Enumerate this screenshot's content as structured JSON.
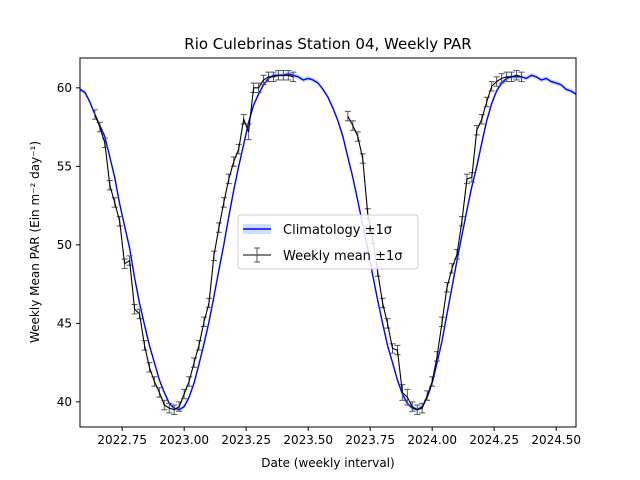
{
  "chart_data": {
    "type": "line",
    "title": "Rio Culebrinas Station 04, Weekly PAR",
    "xlabel": "Date (weekly interval)",
    "ylabel": "Weekly Mean PAR (Ein m⁻² day⁻¹)",
    "xlim": [
      2022.58,
      2024.58
    ],
    "ylim": [
      38.4,
      61.9
    ],
    "x_ticks": [
      2022.75,
      2023.0,
      2023.25,
      2023.5,
      2023.75,
      2024.0,
      2024.25,
      2024.5
    ],
    "x_tick_labels": [
      "2022.75",
      "2023.00",
      "2023.25",
      "2023.50",
      "2023.75",
      "2024.00",
      "2024.25",
      "2024.50"
    ],
    "y_ticks": [
      40,
      45,
      50,
      55,
      60
    ],
    "y_tick_labels": [
      "40",
      "45",
      "50",
      "55",
      "60"
    ],
    "grid": false,
    "legend_position": "center",
    "legend": [
      {
        "label": "Climatology ±1σ",
        "color": "#0000ff",
        "kind": "line-band"
      },
      {
        "label": "Weekly mean ±1σ",
        "color": "#000000",
        "kind": "errorbar"
      }
    ],
    "series": [
      {
        "name": "Climatology ±1σ",
        "color": "#0000ff",
        "x": [
          2022.58,
          2022.6,
          2022.62,
          2022.64,
          2022.66,
          2022.68,
          2022.7,
          2022.72,
          2022.74,
          2022.76,
          2022.78,
          2022.8,
          2022.82,
          2022.84,
          2022.86,
          2022.88,
          2022.9,
          2022.92,
          2022.94,
          2022.96,
          2022.98,
          2023.0,
          2023.02,
          2023.04,
          2023.06,
          2023.08,
          2023.1,
          2023.12,
          2023.14,
          2023.16,
          2023.18,
          2023.2,
          2023.22,
          2023.24,
          2023.26,
          2023.28,
          2023.3,
          2023.32,
          2023.34,
          2023.36,
          2023.38,
          2023.4,
          2023.42,
          2023.44,
          2023.46,
          2023.48,
          2023.5,
          2023.52,
          2023.54,
          2023.56,
          2023.58,
          2023.6,
          2023.62,
          2023.64,
          2023.66,
          2023.68,
          2023.7,
          2023.72,
          2023.74,
          2023.76,
          2023.78,
          2023.8,
          2023.82,
          2023.84,
          2023.86,
          2023.88,
          2023.9,
          2023.92,
          2023.94,
          2023.96,
          2023.98,
          2024.0,
          2024.02,
          2024.04,
          2024.06,
          2024.08,
          2024.1,
          2024.12,
          2024.14,
          2024.16,
          2024.18,
          2024.2,
          2024.22,
          2024.24,
          2024.26,
          2024.28,
          2024.3,
          2024.32,
          2024.34,
          2024.36,
          2024.38,
          2024.4,
          2024.42,
          2024.44,
          2024.46,
          2024.48,
          2024.5,
          2024.52,
          2024.54,
          2024.56,
          2024.58
        ],
        "y": [
          59.9,
          59.7,
          59.1,
          58.3,
          57.6,
          56.9,
          55.6,
          54.3,
          52.6,
          51.2,
          49.8,
          47.9,
          46.3,
          44.9,
          43.6,
          42.5,
          41.4,
          40.6,
          39.9,
          39.6,
          39.5,
          39.7,
          40.3,
          41.2,
          42.4,
          43.7,
          45.1,
          46.7,
          48.4,
          50.0,
          51.8,
          53.5,
          55.0,
          56.4,
          57.8,
          58.9,
          59.6,
          60.2,
          60.6,
          60.8,
          60.8,
          60.8,
          60.9,
          60.8,
          60.7,
          60.5,
          60.6,
          60.5,
          60.3,
          59.9,
          59.4,
          58.7,
          57.9,
          56.9,
          55.6,
          54.3,
          52.8,
          51.3,
          49.8,
          48.1,
          46.5,
          45.0,
          43.6,
          42.5,
          41.4,
          40.5,
          39.9,
          39.6,
          39.5,
          39.7,
          40.3,
          41.2,
          42.5,
          43.9,
          45.6,
          47.3,
          49.0,
          50.6,
          52.2,
          53.7,
          55.0,
          56.5,
          57.9,
          59.0,
          59.8,
          60.3,
          60.6,
          60.7,
          60.7,
          60.7,
          60.6,
          60.8,
          60.7,
          60.5,
          60.6,
          60.4,
          60.3,
          60.2,
          59.9,
          59.8,
          59.6
        ]
      },
      {
        "name": "Weekly mean ±1σ",
        "color": "#000000",
        "x": [
          2022.64,
          2022.66,
          2022.68,
          2022.7,
          2022.72,
          2022.74,
          2022.76,
          2022.78,
          2022.8,
          2022.82,
          2022.84,
          2022.86,
          2022.88,
          2022.9,
          2022.92,
          2022.94,
          2022.96,
          2022.98,
          2023.0,
          2023.02,
          2023.04,
          2023.06,
          2023.08,
          2023.1,
          2023.12,
          2023.14,
          2023.16,
          2023.18,
          2023.2,
          2023.22,
          2023.24,
          2023.26,
          2023.28,
          2023.3,
          2023.32,
          2023.34,
          2023.36,
          2023.38,
          2023.4,
          2023.42,
          2023.44,
          2023.66,
          2023.68,
          2023.7,
          2023.72,
          2023.74,
          2023.76,
          2023.78,
          2023.8,
          2023.82,
          2023.84,
          2023.86,
          2023.88,
          2023.9,
          2023.92,
          2023.94,
          2023.96,
          2023.98,
          2024.0,
          2024.02,
          2024.04,
          2024.06,
          2024.08,
          2024.1,
          2024.12,
          2024.14,
          2024.16,
          2024.18,
          2024.2,
          2024.22,
          2024.24,
          2024.26,
          2024.28,
          2024.3,
          2024.32,
          2024.34,
          2024.36
        ],
        "y": [
          58.3,
          57.5,
          56.5,
          53.8,
          52.7,
          51.5,
          48.8,
          49.0,
          45.9,
          45.6,
          43.6,
          42.2,
          41.3,
          40.6,
          39.8,
          39.6,
          39.5,
          39.7,
          40.5,
          41.3,
          42.5,
          43.6,
          45.1,
          46.3,
          49.3,
          51.1,
          52.7,
          54.2,
          55.3,
          56.1,
          58.0,
          57.2,
          60.0,
          60.0,
          60.5,
          60.7,
          60.7,
          60.8,
          60.8,
          60.8,
          60.7,
          58.2,
          57.6,
          56.9,
          55.5,
          52.0,
          50.4,
          48.3,
          46.3,
          45.0,
          43.4,
          43.3,
          40.6,
          40.3,
          39.7,
          39.5,
          39.6,
          40.4,
          41.3,
          42.9,
          45.1,
          47.3,
          48.5,
          49.4,
          51.5,
          54.2,
          54.3,
          57.3,
          58.0,
          59.1,
          60.1,
          60.4,
          60.6,
          60.7,
          60.7,
          60.8,
          60.7
        ],
        "err": [
          0.3,
          0.3,
          0.3,
          0.3,
          0.3,
          0.3,
          0.3,
          0.3,
          0.3,
          0.3,
          0.3,
          0.3,
          0.3,
          0.3,
          0.3,
          0.3,
          0.3,
          0.3,
          0.3,
          0.3,
          0.3,
          0.3,
          0.3,
          0.3,
          0.3,
          0.3,
          0.3,
          0.3,
          0.3,
          0.3,
          0.3,
          0.5,
          0.3,
          0.3,
          0.3,
          0.3,
          0.3,
          0.3,
          0.3,
          0.3,
          0.3,
          0.3,
          0.3,
          0.3,
          0.3,
          0.3,
          0.3,
          0.3,
          0.3,
          0.3,
          0.3,
          0.3,
          0.5,
          0.5,
          0.3,
          0.3,
          0.3,
          0.3,
          0.3,
          0.3,
          0.3,
          0.3,
          0.3,
          0.3,
          0.3,
          0.3,
          0.3,
          0.3,
          0.3,
          0.3,
          0.3,
          0.3,
          0.3,
          0.3,
          0.3,
          0.3,
          0.3
        ]
      }
    ]
  }
}
